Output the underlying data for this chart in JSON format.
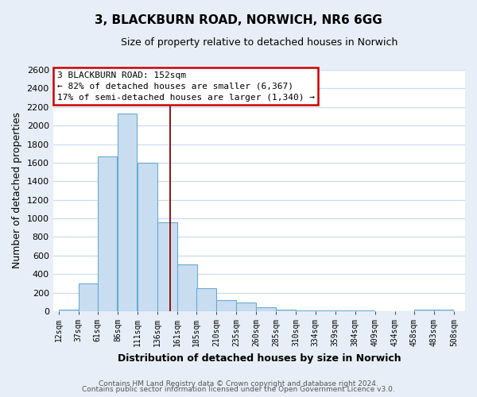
{
  "title": "3, BLACKBURN ROAD, NORWICH, NR6 6GG",
  "subtitle": "Size of property relative to detached houses in Norwich",
  "xlabel": "Distribution of detached houses by size in Norwich",
  "ylabel": "Number of detached properties",
  "bar_left_edges": [
    12,
    37,
    61,
    86,
    111,
    136,
    161,
    185,
    210,
    235,
    260,
    285,
    310,
    334,
    359,
    384,
    409,
    434,
    458,
    483
  ],
  "bar_heights": [
    20,
    295,
    1670,
    2130,
    1600,
    960,
    500,
    250,
    120,
    95,
    40,
    18,
    10,
    8,
    5,
    5,
    3,
    3,
    20,
    20
  ],
  "bar_color": "#c9ddf0",
  "bar_edge_color": "#6aaad4",
  "grid_color": "#c9ddf0",
  "property_line_x": 152,
  "property_line_color": "#8B0000",
  "annotation_text_line1": "3 BLACKBURN ROAD: 152sqm",
  "annotation_text_line2": "← 82% of detached houses are smaller (6,367)",
  "annotation_text_line3": "17% of semi-detached houses are larger (1,340) →",
  "annotation_box_facecolor": "#ffffff",
  "annotation_box_edgecolor": "#cc0000",
  "tick_labels": [
    "12sqm",
    "37sqm",
    "61sqm",
    "86sqm",
    "111sqm",
    "136sqm",
    "161sqm",
    "185sqm",
    "210sqm",
    "235sqm",
    "260sqm",
    "285sqm",
    "310sqm",
    "334sqm",
    "359sqm",
    "384sqm",
    "409sqm",
    "434sqm",
    "458sqm",
    "483sqm",
    "508sqm"
  ],
  "tick_positions": [
    12,
    37,
    61,
    86,
    111,
    136,
    161,
    185,
    210,
    235,
    260,
    285,
    310,
    334,
    359,
    384,
    409,
    434,
    458,
    483,
    508
  ],
  "yticks": [
    0,
    200,
    400,
    600,
    800,
    1000,
    1200,
    1400,
    1600,
    1800,
    2000,
    2200,
    2400,
    2600
  ],
  "ylim": [
    0,
    2600
  ],
  "xlim": [
    5,
    522
  ],
  "fig_bg_color": "#e8eef7",
  "plot_bg_color": "#ffffff",
  "footer_line1": "Contains HM Land Registry data © Crown copyright and database right 2024.",
  "footer_line2": "Contains public sector information licensed under the Open Government Licence v3.0."
}
